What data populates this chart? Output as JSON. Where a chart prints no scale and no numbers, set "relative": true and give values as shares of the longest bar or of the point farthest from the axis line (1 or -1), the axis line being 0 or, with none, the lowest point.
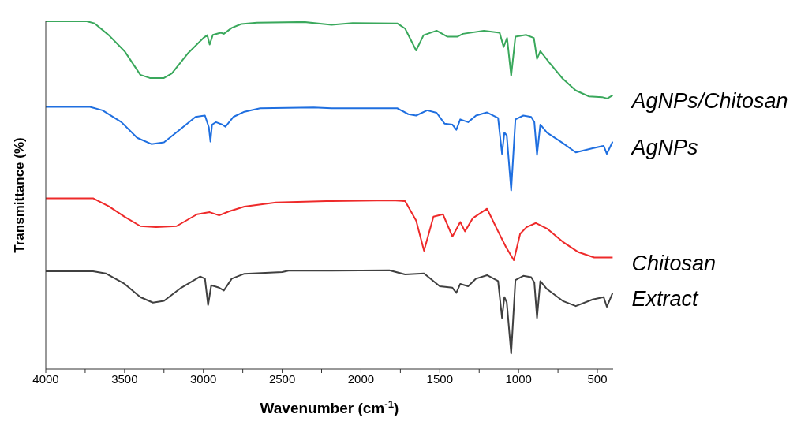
{
  "chart_data": {
    "type": "line",
    "relative": true,
    "xlabel": "Wavenumber (cm$^{-1}$)",
    "ylabel": "Transmittance (%)",
    "xlim": [
      4000,
      400
    ],
    "xticks": [
      4000,
      {
        "value": 3750,
        "label": null
      },
      3500,
      {
        "value": 3250,
        "label": null
      },
      3000,
      {
        "value": 2750,
        "label": null
      },
      2500,
      {
        "value": 2250,
        "label": null
      },
      2000,
      {
        "value": 1750,
        "label": null
      },
      1500,
      {
        "value": 1250,
        "label": null
      },
      1000,
      {
        "value": 750,
        "label": null
      },
      500
    ],
    "grid": false,
    "legend": false,
    "marker": "none",
    "line_style": "solid",
    "series": [
      {
        "name": "AgNPs/Chitosan",
        "color": "#3aa85c",
        "x": [
          4000,
          3740,
          3690,
          3600,
          3500,
          3400,
          3340,
          3250,
          3200,
          3100,
          3000,
          2975,
          2960,
          2940,
          2890,
          2870,
          2820,
          2760,
          2660,
          2360,
          2187,
          2053,
          1770,
          1720,
          1650,
          1603,
          1520,
          1453,
          1387,
          1353,
          1220,
          1120,
          1095,
          1073,
          1047,
          1020,
          953,
          903,
          883,
          862,
          803,
          720,
          637,
          553,
          470,
          437,
          403
        ],
        "values": [
          1.0,
          1.0,
          0.994,
          0.96,
          0.914,
          0.846,
          0.837,
          0.837,
          0.85,
          0.907,
          0.952,
          0.96,
          0.933,
          0.961,
          0.967,
          0.964,
          0.981,
          0.992,
          0.996,
          0.998,
          0.99,
          0.995,
          0.994,
          0.979,
          0.916,
          0.96,
          0.973,
          0.956,
          0.956,
          0.964,
          0.973,
          0.967,
          0.926,
          0.952,
          0.843,
          0.956,
          0.961,
          0.952,
          0.892,
          0.914,
          0.88,
          0.835,
          0.801,
          0.784,
          0.782,
          0.778,
          0.787
        ]
      },
      {
        "name": "AgNPs",
        "color": "#1f6fe0",
        "x": [
          4000,
          3720,
          3640,
          3520,
          3420,
          3330,
          3250,
          3150,
          3050,
          2990,
          2965,
          2955,
          2945,
          2920,
          2880,
          2860,
          2810,
          2740,
          2640,
          2300,
          2187,
          1770,
          1700,
          1650,
          1580,
          1520,
          1470,
          1420,
          1395,
          1370,
          1320,
          1270,
          1200,
          1130,
          1105,
          1090,
          1075,
          1047,
          1020,
          970,
          920,
          900,
          883,
          862,
          820,
          720,
          637,
          530,
          460,
          440,
          403
        ],
        "values": [
          0.754,
          0.754,
          0.744,
          0.71,
          0.665,
          0.647,
          0.652,
          0.688,
          0.725,
          0.729,
          0.695,
          0.654,
          0.703,
          0.71,
          0.703,
          0.697,
          0.725,
          0.74,
          0.75,
          0.752,
          0.75,
          0.75,
          0.733,
          0.729,
          0.744,
          0.737,
          0.706,
          0.703,
          0.688,
          0.718,
          0.71,
          0.729,
          0.738,
          0.722,
          0.619,
          0.68,
          0.672,
          0.514,
          0.718,
          0.729,
          0.725,
          0.71,
          0.616,
          0.703,
          0.68,
          0.65,
          0.623,
          0.635,
          0.642,
          0.619,
          0.654
        ]
      },
      {
        "name": "Chitosan",
        "color": "#ee2a2a",
        "x": [
          4000,
          3700,
          3600,
          3500,
          3400,
          3300,
          3170,
          3040,
          2960,
          2900,
          2840,
          2740,
          2540,
          2220,
          2187,
          1803,
          1720,
          1650,
          1600,
          1540,
          1480,
          1420,
          1370,
          1340,
          1290,
          1200,
          1130,
          1080,
          1030,
          990,
          950,
          890,
          820,
          720,
          620,
          520,
          403
        ],
        "values": [
          0.491,
          0.491,
          0.468,
          0.438,
          0.411,
          0.408,
          0.411,
          0.445,
          0.451,
          0.442,
          0.453,
          0.467,
          0.479,
          0.483,
          0.483,
          0.485,
          0.483,
          0.427,
          0.34,
          0.438,
          0.445,
          0.381,
          0.423,
          0.396,
          0.434,
          0.461,
          0.396,
          0.351,
          0.313,
          0.389,
          0.408,
          0.42,
          0.404,
          0.366,
          0.336,
          0.321,
          0.321
        ]
      },
      {
        "name": "Extract",
        "color": "#404040",
        "x": [
          4000,
          3700,
          3620,
          3500,
          3400,
          3320,
          3250,
          3140,
          3020,
          2990,
          2970,
          2950,
          2900,
          2870,
          2820,
          2740,
          2500,
          2460,
          2187,
          1820,
          1720,
          1600,
          1500,
          1420,
          1395,
          1370,
          1320,
          1270,
          1200,
          1130,
          1105,
          1090,
          1075,
          1047,
          1020,
          970,
          920,
          900,
          883,
          862,
          820,
          720,
          637,
          530,
          460,
          440,
          403
        ],
        "values": [
          0.281,
          0.281,
          0.275,
          0.245,
          0.207,
          0.191,
          0.196,
          0.234,
          0.266,
          0.26,
          0.184,
          0.241,
          0.234,
          0.226,
          0.26,
          0.274,
          0.279,
          0.283,
          0.283,
          0.284,
          0.272,
          0.275,
          0.238,
          0.234,
          0.219,
          0.245,
          0.238,
          0.26,
          0.27,
          0.253,
          0.147,
          0.207,
          0.192,
          0.045,
          0.256,
          0.268,
          0.264,
          0.249,
          0.147,
          0.253,
          0.23,
          0.196,
          0.181,
          0.2,
          0.207,
          0.179,
          0.219
        ]
      }
    ]
  }
}
